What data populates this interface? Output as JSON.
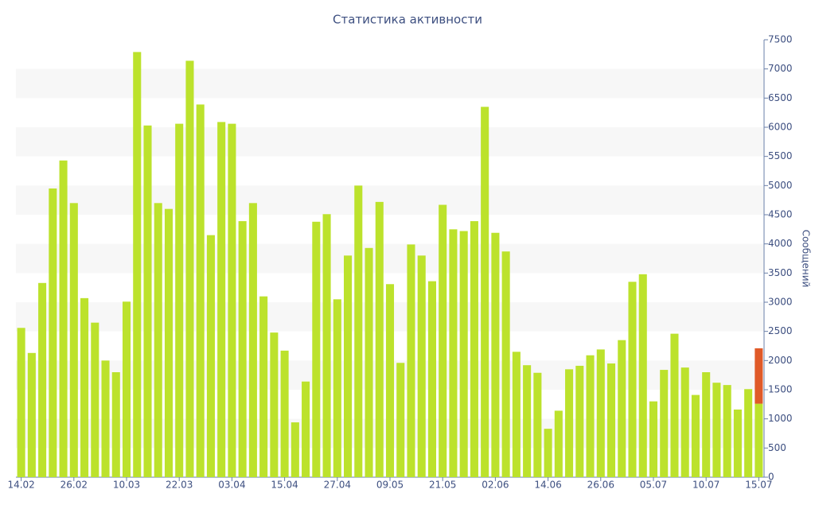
{
  "chart_data": {
    "type": "bar",
    "title": "Статистика активности",
    "y_label": "Сообщений",
    "categories": [
      "14.02",
      null,
      null,
      null,
      null,
      "26.02",
      null,
      null,
      null,
      null,
      "10.03",
      null,
      null,
      null,
      null,
      "22.03",
      null,
      null,
      null,
      null,
      "03.04",
      null,
      null,
      null,
      null,
      "15.04",
      null,
      null,
      null,
      null,
      "27.04",
      null,
      null,
      null,
      null,
      "09.05",
      null,
      null,
      null,
      null,
      "21.05",
      null,
      null,
      null,
      null,
      "02.06",
      null,
      null,
      null,
      null,
      "14.06",
      null,
      null,
      null,
      null,
      "26.06",
      null,
      null,
      null,
      null,
      "05.07",
      null,
      null,
      null,
      null,
      "10.07",
      null,
      null,
      null,
      null,
      "15.07"
    ],
    "series": [
      {
        "color": "#bce22c",
        "values": [
          2560,
          2130,
          3330,
          4950,
          5430,
          4700,
          3070,
          2650,
          2000,
          1800,
          3010,
          7290,
          6030,
          4700,
          4600,
          6060,
          7140,
          6390,
          4150,
          6090,
          6060,
          4390,
          4700,
          3100,
          2480,
          2170,
          940,
          1640,
          4380,
          4510,
          3050,
          3800,
          5000,
          3930,
          4720,
          3310,
          1960,
          3990,
          3800,
          3360,
          4670,
          4250,
          4220,
          4390,
          6350,
          4190,
          3870,
          2150,
          1920,
          1790,
          830,
          1140,
          1850,
          1910,
          2090,
          2190,
          1950,
          2350,
          3350,
          3480,
          1300,
          1840,
          2460,
          1880,
          1410,
          1800,
          1620,
          1580,
          1160,
          1510,
          1260
        ]
      },
      {
        "color": "#e05a28",
        "values": [
          null,
          null,
          null,
          null,
          null,
          null,
          null,
          null,
          null,
          null,
          null,
          null,
          null,
          null,
          null,
          null,
          null,
          null,
          null,
          null,
          null,
          null,
          null,
          null,
          null,
          null,
          null,
          null,
          null,
          null,
          null,
          null,
          null,
          null,
          null,
          null,
          null,
          null,
          null,
          null,
          null,
          null,
          null,
          null,
          null,
          null,
          null,
          null,
          null,
          null,
          null,
          null,
          null,
          null,
          null,
          null,
          null,
          null,
          null,
          null,
          null,
          null,
          null,
          null,
          null,
          null,
          null,
          null,
          null,
          null,
          950
        ]
      }
    ],
    "ylim": [
      0,
      7500
    ],
    "yticks": [
      0,
      500,
      1000,
      1500,
      2000,
      2500,
      3000,
      3500,
      4000,
      4500,
      5000,
      5500,
      6000,
      6500,
      7000,
      7500
    ],
    "stacked": true,
    "grid": true
  }
}
